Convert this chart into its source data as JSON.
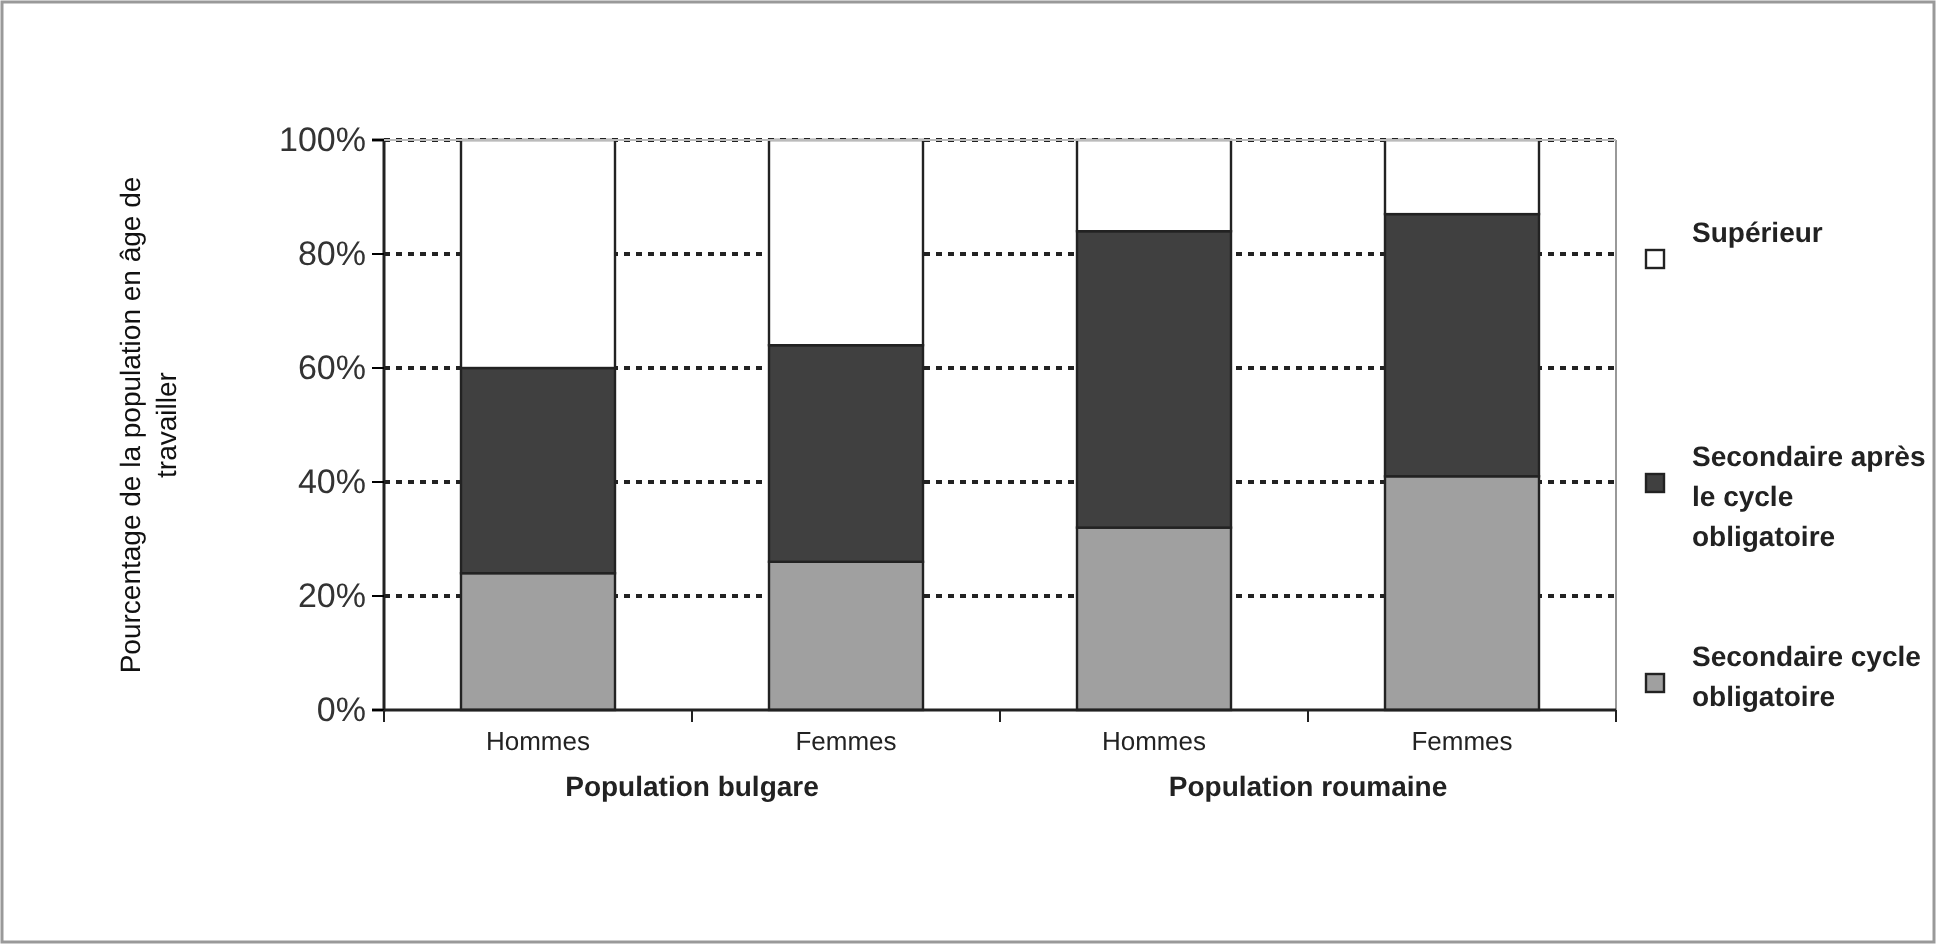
{
  "chart_data": {
    "type": "bar",
    "stacked": true,
    "ylabel": "Pourcentage de la population en âge de travailler",
    "categories": [
      "Hommes",
      "Femmes",
      "Hommes",
      "Femmes"
    ],
    "series": [
      {
        "name": "Secondaire cycle obligatoire",
        "color": "#a0a0a0",
        "values": [
          24,
          26,
          32,
          41
        ]
      },
      {
        "name": "Secondaire après le cycle obligatoire",
        "color": "#404040",
        "values": [
          36,
          38,
          52,
          46
        ]
      },
      {
        "name": "Supérieur",
        "color": "#ffffff",
        "values": [
          40,
          36,
          16,
          13
        ]
      }
    ],
    "ylim": [
      0,
      100
    ],
    "yticks": [
      {
        "value": 0,
        "label": "0%"
      },
      {
        "value": 20,
        "label": "20%"
      },
      {
        "value": 40,
        "label": "40%"
      },
      {
        "value": 60,
        "label": "60%"
      },
      {
        "value": 80,
        "label": "80%"
      },
      {
        "value": 100,
        "label": "100%"
      }
    ],
    "grid": "y",
    "legend": "right",
    "annotations": [
      "Population bulgare",
      "Population roumaine"
    ]
  }
}
